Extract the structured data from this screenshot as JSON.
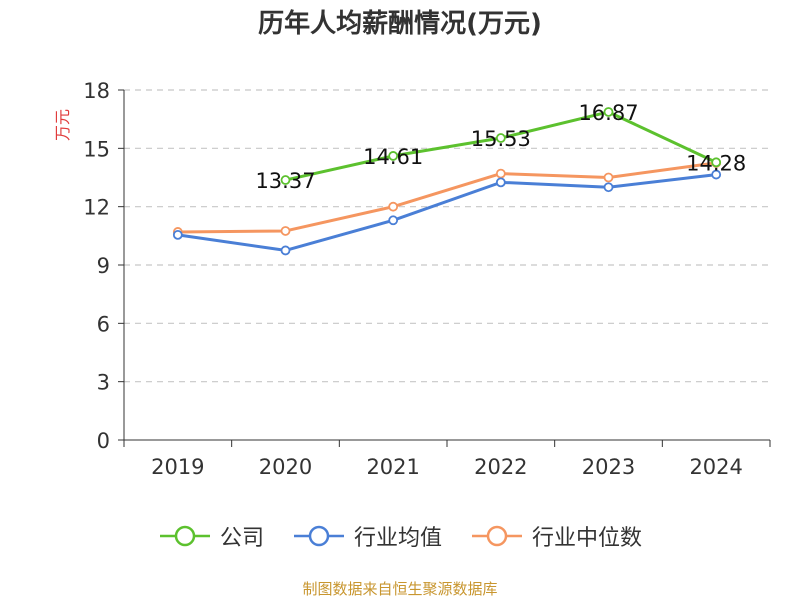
{
  "chart_data": {
    "type": "line",
    "title": "历年人均薪酬情况(万元)",
    "ylabel": "万元",
    "xlabel": "",
    "categories": [
      "2019",
      "2020",
      "2021",
      "2022",
      "2023",
      "2024"
    ],
    "ylim": [
      0,
      18
    ],
    "yticks": [
      0,
      3,
      6,
      9,
      12,
      15,
      18
    ],
    "grid": true,
    "legend_position": "bottom",
    "series": [
      {
        "name": "公司",
        "color": "#5cc12e",
        "values": [
          null,
          13.37,
          14.61,
          15.53,
          16.87,
          14.28
        ],
        "labels": [
          "",
          "13.37",
          "14.61",
          "15.53",
          "16.87",
          "14.28"
        ]
      },
      {
        "name": "行业均值",
        "color": "#4a7fd6",
        "values": [
          10.55,
          9.75,
          11.3,
          13.25,
          13.0,
          13.65
        ]
      },
      {
        "name": "行业中位数",
        "color": "#f59660",
        "values": [
          10.7,
          10.75,
          12.0,
          13.7,
          13.5,
          14.25
        ]
      }
    ]
  },
  "footer": {
    "source": "制图数据来自恒生聚源数据库"
  }
}
